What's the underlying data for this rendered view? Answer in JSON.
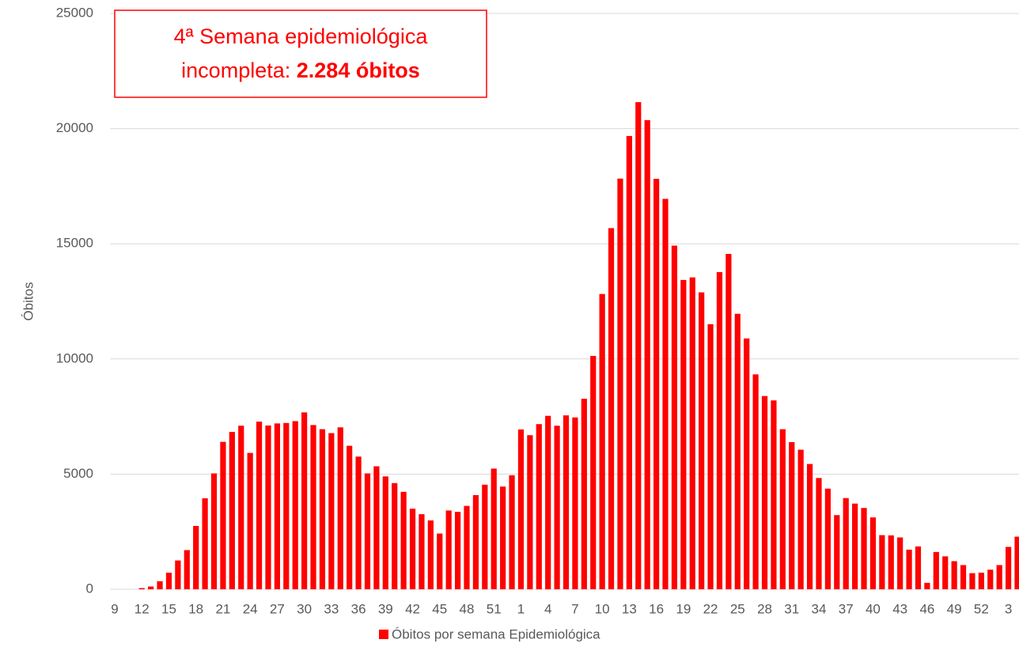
{
  "chart_data": {
    "type": "bar",
    "y_axis_label": "Óbitos",
    "annotation": {
      "line1": "4ª Semana epidemiológica",
      "line2_prefix": "incompleta:",
      "line2_bold": "2.284  óbitos"
    },
    "categories": [
      "9",
      null,
      null,
      "12",
      null,
      null,
      "15",
      null,
      null,
      "18",
      null,
      null,
      "21",
      null,
      null,
      "24",
      null,
      null,
      "27",
      null,
      null,
      "30",
      null,
      null,
      "33",
      null,
      null,
      "36",
      null,
      null,
      "39",
      null,
      null,
      "42",
      null,
      null,
      "45",
      null,
      null,
      "48",
      null,
      null,
      "51",
      null,
      null,
      "1",
      null,
      null,
      "4",
      null,
      null,
      "7",
      null,
      null,
      "10",
      null,
      null,
      "13",
      null,
      null,
      "16",
      null,
      null,
      "19",
      null,
      null,
      "22",
      null,
      null,
      "25",
      null,
      null,
      "28",
      null,
      null,
      "31",
      null,
      null,
      "34",
      null,
      null,
      "37",
      null,
      null,
      "40",
      null,
      null,
      "43",
      null,
      null,
      "46",
      null,
      null,
      "49",
      null,
      null,
      "52",
      null,
      null,
      "3",
      null
    ],
    "series": [
      {
        "name": "Óbitos por semana Epidemiológica",
        "color": "#ff0000",
        "values": [
          0,
          0,
          0,
          50,
          120,
          350,
          720,
          1250,
          1700,
          2750,
          3950,
          5030,
          6400,
          6830,
          7100,
          5920,
          7280,
          7110,
          7200,
          7220,
          7300,
          7680,
          7130,
          6950,
          6780,
          7030,
          6230,
          5760,
          5030,
          5340,
          4900,
          4610,
          4230,
          3500,
          3260,
          2990,
          2420,
          3420,
          3360,
          3620,
          4090,
          4540,
          5240,
          4460,
          4950,
          6940,
          6690,
          7170,
          7530,
          7100,
          7550,
          7460,
          8270,
          10130,
          12820,
          15680,
          17830,
          19680,
          21150,
          20370,
          17820,
          16950,
          14920,
          13430,
          13540,
          12890,
          11510,
          13770,
          14560,
          11960,
          10890,
          9330,
          8390,
          8200,
          6950,
          6390,
          6060,
          5440,
          4830,
          4370,
          3220,
          3960,
          3720,
          3530,
          3120,
          2350,
          2340,
          2250,
          1720,
          1860,
          280,
          1620,
          1430,
          1220,
          1050,
          700,
          720,
          850,
          1050,
          1840,
          2284
        ]
      }
    ],
    "ylim": [
      0,
      25000
    ],
    "yticks": [
      0,
      5000,
      10000,
      15000,
      20000,
      25000
    ],
    "grid": true
  }
}
